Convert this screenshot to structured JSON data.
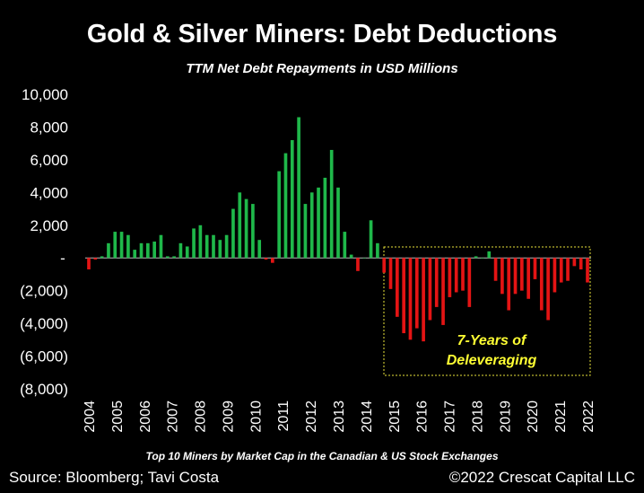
{
  "chart_data": {
    "type": "bar",
    "title": "Gold & Silver Miners: Debt Deductions",
    "subtitle": "TTM Net Debt Repayments in USD Millions",
    "ylim": [
      -8000,
      10000
    ],
    "y_ticks": [
      10000,
      8000,
      6000,
      4000,
      2000,
      0,
      -2000,
      -4000,
      -6000,
      -8000
    ],
    "y_tick_labels": [
      "10,000",
      "8,000",
      "6,000",
      "4,000",
      "2,000",
      "-",
      "(2,000)",
      "(4,000)",
      "(6,000)",
      "(8,000)"
    ],
    "x_tick_labels": [
      "2004",
      "2005",
      "2006",
      "2007",
      "2008",
      "2009",
      "2010",
      "2011",
      "2012",
      "2013",
      "2014",
      "2015",
      "2016",
      "2017",
      "2018",
      "2019",
      "2020",
      "2021",
      "2022"
    ],
    "x_start_year": 2004,
    "values": [
      -700,
      -100,
      100,
      900,
      1600,
      1600,
      1400,
      500,
      900,
      900,
      1000,
      1400,
      100,
      100,
      900,
      700,
      1800,
      2000,
      1400,
      1400,
      1100,
      1400,
      3000,
      4000,
      3600,
      3300,
      1100,
      -100,
      -300,
      5300,
      6400,
      7200,
      8600,
      3300,
      4000,
      4300,
      4900,
      6600,
      4300,
      1600,
      200,
      -800,
      0,
      2300,
      900,
      -900,
      -1900,
      -3600,
      -4600,
      -5000,
      -4300,
      -5100,
      -3800,
      -3000,
      -4100,
      -2400,
      -2100,
      -2000,
      -3000,
      100,
      0,
      400,
      -1400,
      -2200,
      -3200,
      -2200,
      -2000,
      -2500,
      -1300,
      -3200,
      -3800,
      -2100,
      -1500,
      -1400,
      -500,
      -700,
      -1500
    ],
    "colors": {
      "positive": "#1fb84a",
      "negative": "#e41414",
      "box": "#e8e23a",
      "annotation": "#ffff33"
    },
    "annotation": {
      "text_line1": "7-Years of",
      "text_line2": "Deleveraging"
    },
    "footnote": "Top 10 Miners by Market Cap in the Canadian & US Stock Exchanges"
  },
  "footer": {
    "source": "Source: Bloomberg; Tavi Costa",
    "copyright": "©2022 Crescat Capital LLC"
  }
}
